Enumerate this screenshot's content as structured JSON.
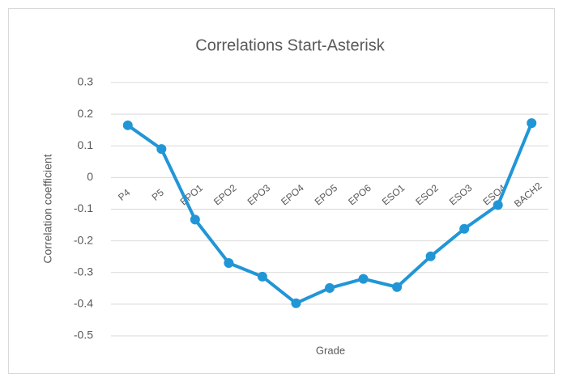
{
  "chart_data": {
    "type": "line",
    "title": "Correlations Start-Asterisk",
    "x_label": "Grade",
    "y_label": "Correlation coefficient",
    "categories": [
      "P4",
      "P5",
      "EPO1",
      "EPO2",
      "EPO3",
      "EPO4",
      "EPO5",
      "EPO6",
      "ESO1",
      "ESO2",
      "ESO3",
      "ESO4",
      "BACH2"
    ],
    "values": [
      0.165,
      0.09,
      -0.133,
      -0.27,
      -0.313,
      -0.397,
      -0.349,
      -0.32,
      -0.346,
      -0.249,
      -0.162,
      -0.087,
      0.172
    ],
    "color": "#2196d6",
    "ylim": [
      -0.5,
      0.3
    ],
    "yticks": [
      -0.5,
      -0.4,
      -0.3,
      -0.2,
      -0.1,
      0,
      0.1,
      0.2,
      0.3
    ],
    "grid": true
  }
}
